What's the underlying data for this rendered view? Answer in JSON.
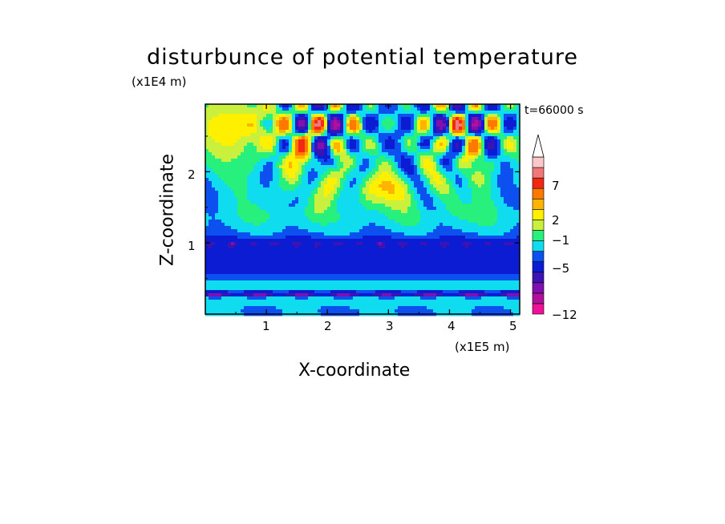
{
  "chart_data": {
    "type": "heatmap",
    "title": "disturbunce of potential temperature",
    "xlabel": "X-coordinate",
    "ylabel": "Z-coordinate",
    "x_unit": "(x1E5 m)",
    "y_unit": "(x1E4 m)",
    "time_label": "t=66000 s",
    "x_range": [
      0,
      5.15
    ],
    "y_range": [
      0,
      2.95
    ],
    "x_ticks": [
      "1",
      "2",
      "3",
      "4",
      "5"
    ],
    "y_ticks": [
      "1",
      "2"
    ],
    "colorbar": {
      "tick_labels": [
        "7",
        "2",
        "−1",
        "−5",
        "−12"
      ],
      "colors": [
        "#f0109a",
        "#b0109a",
        "#8010b0",
        "#3c14b4",
        "#0c1cd2",
        "#0c50f0",
        "#10dcf0",
        "#28f07c",
        "#c8f03c",
        "#fff000",
        "#ffb400",
        "#ff7800",
        "#f02814",
        "#f07878",
        "#ffc8c8"
      ],
      "extend": "max"
    },
    "grid": false
  }
}
